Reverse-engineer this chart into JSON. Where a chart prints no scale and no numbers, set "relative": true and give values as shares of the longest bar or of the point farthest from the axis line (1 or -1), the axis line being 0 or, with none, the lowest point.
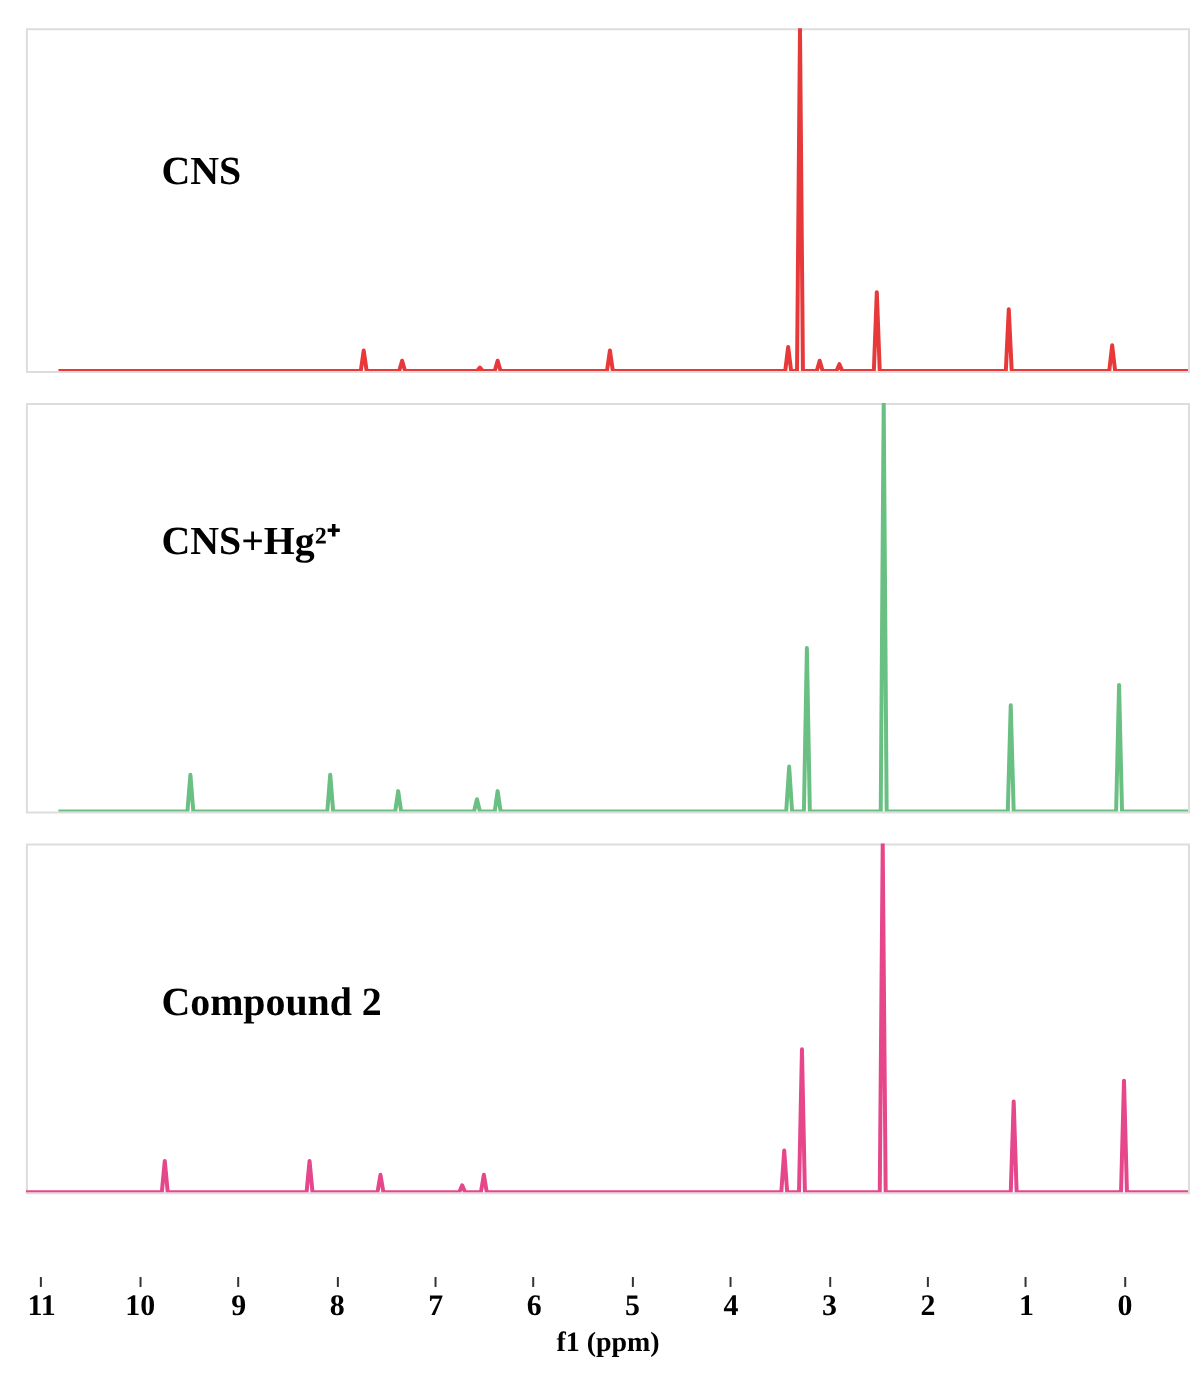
{
  "chart_data": [
    {
      "type": "line",
      "relative": true,
      "xlim": [
        11.15,
        -0.65
      ],
      "tick_labels": false,
      "grid": false,
      "series": [
        {
          "name": "CNS",
          "color": "#e8393a",
          "x": [
            10.82,
            7.75,
            7.72,
            7.69,
            7.36,
            7.33,
            7.3,
            6.57,
            6.54,
            6.51,
            6.39,
            6.36,
            6.33,
            5.25,
            5.22,
            5.19,
            3.44,
            3.41,
            3.38,
            3.32,
            3.29,
            3.26,
            3.12,
            3.09,
            3.06,
            2.92,
            2.89,
            2.86,
            2.54,
            2.51,
            2.48,
            1.2,
            1.17,
            1.14,
            0.15,
            0.12,
            0.09,
            -0.65
          ],
          "values": [
            0,
            0,
            0.06,
            0,
            0,
            0.03,
            0,
            0,
            0.01,
            0,
            0,
            0.03,
            0,
            0,
            0.06,
            0,
            0,
            0.07,
            0,
            0,
            1,
            0,
            0,
            0.03,
            0,
            0,
            0.02,
            0,
            0,
            0.23,
            0,
            0,
            0.18,
            0,
            0,
            0.075,
            0,
            0
          ]
        }
      ]
    },
    {
      "type": "line",
      "relative": true,
      "xlim": [
        11.15,
        -0.65
      ],
      "tick_labels": false,
      "grid": false,
      "series": [
        {
          "name": "CNS+Hg²⁺",
          "color": "#6abf83",
          "x": [
            10.82,
            9.51,
            9.48,
            9.45,
            8.09,
            8.06,
            8.03,
            7.4,
            7.37,
            7.34,
            6.6,
            6.57,
            6.54,
            6.39,
            6.36,
            6.33,
            3.43,
            3.4,
            3.37,
            3.25,
            3.22,
            3.19,
            2.47,
            2.44,
            2.41,
            1.18,
            1.15,
            1.12,
            0.08,
            0.05,
            0.02,
            -0.65
          ],
          "values": [
            0,
            0,
            0.09,
            0,
            0,
            0.09,
            0,
            0,
            0.05,
            0,
            0,
            0.03,
            0,
            0,
            0.05,
            0,
            0,
            0.11,
            0,
            0,
            0.4,
            0,
            0,
            1,
            0,
            0,
            0.26,
            0,
            0,
            0.31,
            0,
            0
          ]
        }
      ]
    },
    {
      "type": "line",
      "relative": true,
      "xlim": [
        11.15,
        -0.65
      ],
      "xticks": [
        11,
        10,
        9,
        8,
        7,
        6,
        5,
        4,
        3,
        2,
        1,
        0
      ],
      "xlabel": "f1 (ppm)",
      "tick_labels": "x",
      "grid": false,
      "series": [
        {
          "name": "Compound 2",
          "color": "#e6468a",
          "x": [
            11.15,
            9.77,
            9.74,
            9.71,
            8.3,
            8.27,
            8.24,
            7.58,
            7.55,
            7.52,
            6.75,
            6.72,
            6.69,
            6.53,
            6.5,
            6.47,
            3.48,
            3.45,
            3.42,
            3.3,
            3.27,
            3.24,
            2.48,
            2.45,
            2.42,
            1.15,
            1.12,
            1.09,
            0.03,
            0.0,
            -0.03,
            -0.65
          ],
          "values": [
            0,
            0,
            0.09,
            0,
            0,
            0.09,
            0,
            0,
            0.05,
            0,
            0,
            0.02,
            0,
            0,
            0.05,
            0,
            0,
            0.12,
            0,
            0,
            0.41,
            0,
            0,
            1,
            0,
            0,
            0.26,
            0,
            0,
            0.32,
            0,
            0
          ]
        }
      ]
    }
  ]
}
